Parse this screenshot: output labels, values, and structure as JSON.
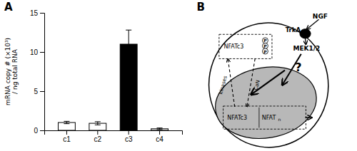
{
  "chart_data": {
    "type": "bar",
    "categories": [
      "c1",
      "c2",
      "c3",
      "c4"
    ],
    "values": [
      1.0,
      0.9,
      11.0,
      0.2
    ],
    "errors": [
      0.15,
      0.2,
      1.8,
      0.1
    ],
    "colors": [
      "white",
      "white",
      "black",
      "white"
    ],
    "ylabel": "mRNA copy # (×10³)\n/ ng total RNA",
    "ylim": [
      0,
      15
    ],
    "yticks": [
      0,
      5,
      10,
      15
    ],
    "annotations": [
      "A",
      "B",
      "NGF",
      "TrkA",
      "MEK1/2",
      "?",
      "NFATc3",
      "P",
      "P",
      "P",
      "NFATc3",
      "NFAT",
      "n",
      "CaN",
      "kinases"
    ]
  }
}
